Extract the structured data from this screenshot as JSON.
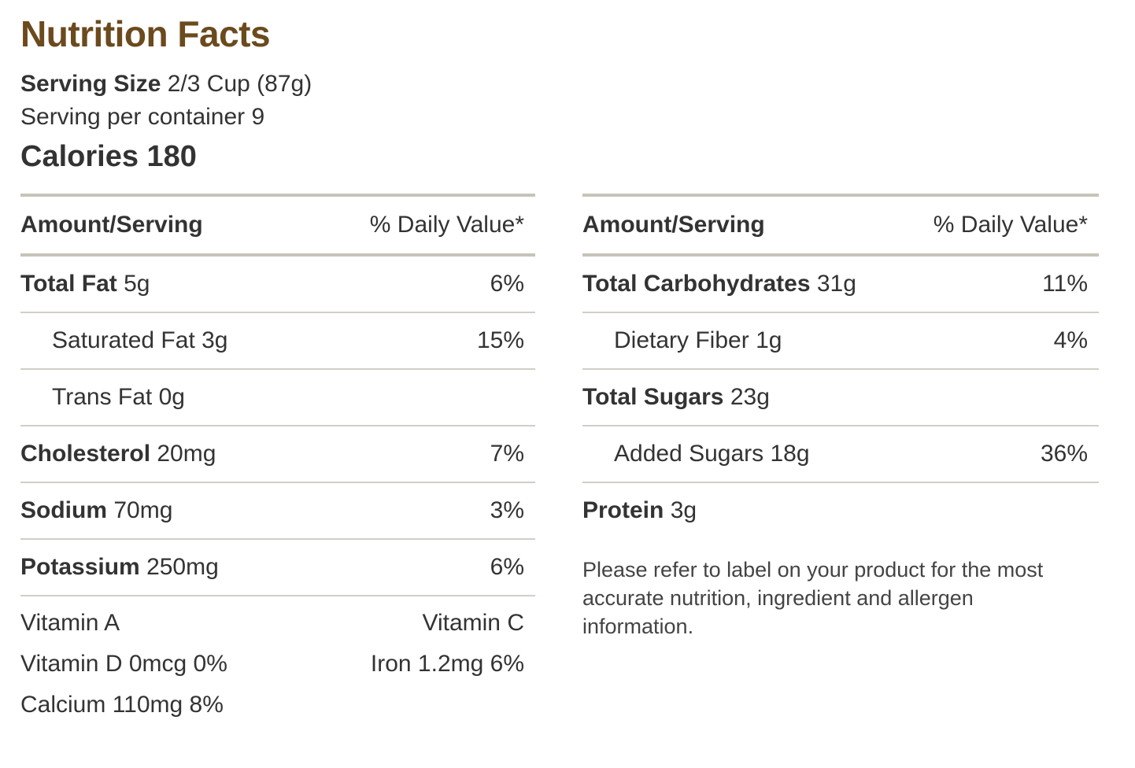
{
  "title": "Nutrition Facts",
  "serving": {
    "size_label": "Serving Size",
    "size_value": "2/3 Cup (87g)",
    "per_container_label": "Serving per container",
    "per_container_value": "9"
  },
  "calories": {
    "label": "Calories",
    "value": "180"
  },
  "header": {
    "amount": "Amount/Serving",
    "dv": "% Daily Value*"
  },
  "left": [
    {
      "name": "Total Fat",
      "amount": "5g",
      "dv": "6%"
    },
    {
      "name": "Saturated Fat",
      "amount": "3g",
      "dv": "15%"
    },
    {
      "name": "Trans Fat",
      "amount": "0g",
      "dv": ""
    },
    {
      "name": "Cholesterol",
      "amount": "20mg",
      "dv": "7%"
    },
    {
      "name": "Sodium",
      "amount": "70mg",
      "dv": "3%"
    },
    {
      "name": "Potassium",
      "amount": "250mg",
      "dv": "6%"
    }
  ],
  "right": [
    {
      "name": "Total Carbohydrates",
      "amount": "31g",
      "dv": "11%"
    },
    {
      "name": "Dietary Fiber",
      "amount": "1g",
      "dv": "4%"
    },
    {
      "name": "Total Sugars",
      "amount": "23g",
      "dv": ""
    },
    {
      "name": "Added Sugars",
      "amount": "18g",
      "dv": "36%"
    },
    {
      "name": "Protein",
      "amount": "3g",
      "dv": ""
    }
  ],
  "vitamins": [
    [
      "Vitamin A",
      "Vitamin C"
    ],
    [
      "Vitamin D 0mcg 0%",
      "Iron 1.2mg 6%"
    ],
    [
      "Calcium 110mg 8%",
      ""
    ]
  ],
  "disclaimer": "Please refer to label on your product for the most accurate nutrition, ingredient and allergen information."
}
